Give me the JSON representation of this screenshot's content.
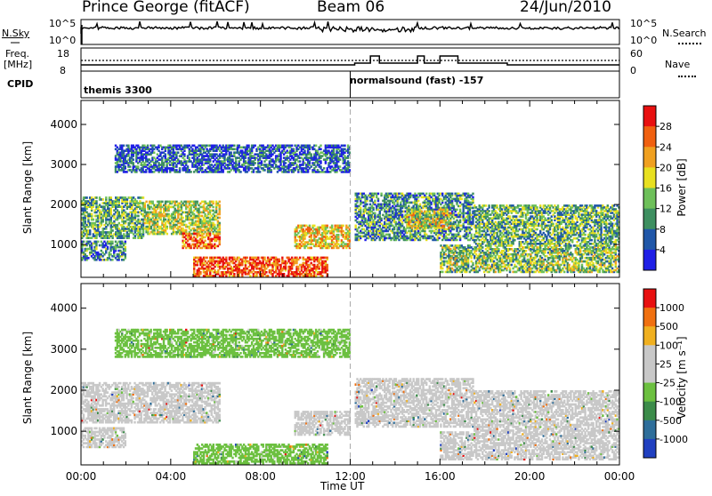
{
  "header": {
    "station": "Prince George (fitACF)",
    "beam": "Beam 06",
    "date": "24/Jun/2010"
  },
  "top_panels": {
    "nsky_label": "N.Sky",
    "nsky_ticks": [
      "10^5",
      "10^0"
    ],
    "nsearch_label": "N.Search",
    "nsearch_ticks": [
      "10^5",
      "10^0"
    ],
    "freq_label": "Freq.",
    "freq_unit": "[MHz]",
    "freq_ticks": [
      "18",
      "8"
    ],
    "nave_label": "Nave",
    "nave_ticks": [
      "60",
      "0"
    ],
    "cpid_label": "CPID",
    "cpid_segments": [
      {
        "label": "themis 3300"
      },
      {
        "label": "normalsound (fast) -157"
      }
    ]
  },
  "chart_data": [
    {
      "type": "heatmap",
      "panel": "power",
      "title": "",
      "xlabel": "",
      "ylabel": "Slant Range [km]",
      "x_tick_labels": [],
      "y_ticks": [
        1000,
        2000,
        3000,
        4000
      ],
      "y_tick_labels": [
        "1000",
        "2000",
        "3000",
        "4000"
      ],
      "xlim": [
        0,
        24
      ],
      "ylim": [
        180,
        4600
      ],
      "colorbar": {
        "label": "Power [dB]",
        "ticks": [
          "4",
          "8",
          "12",
          "16",
          "20",
          "24",
          "28"
        ],
        "colors": [
          "#1f1fe6",
          "#2057a8",
          "#3e8f60",
          "#6ec05a",
          "#e8e020",
          "#f0a020",
          "#f06010",
          "#e81010"
        ],
        "range": [
          0,
          32
        ]
      },
      "regions": [
        {
          "x": [
            0.0,
            2.8
          ],
          "y": [
            1150,
            2200
          ],
          "value": 12
        },
        {
          "x": [
            2.8,
            6.2
          ],
          "y": [
            1250,
            2100
          ],
          "value": 16
        },
        {
          "x": [
            4.5,
            6.2
          ],
          "y": [
            900,
            1300
          ],
          "value": 26
        },
        {
          "x": [
            0.0,
            2.0
          ],
          "y": [
            600,
            1100
          ],
          "value": 9
        },
        {
          "x": [
            5.0,
            11.0
          ],
          "y": [
            200,
            700
          ],
          "value": 27
        },
        {
          "x": [
            9.5,
            12.0
          ],
          "y": [
            900,
            1500
          ],
          "value": 20
        },
        {
          "x": [
            12.2,
            17.5
          ],
          "y": [
            1100,
            2300
          ],
          "value": 10
        },
        {
          "x": [
            14.5,
            16.5
          ],
          "y": [
            1400,
            1900
          ],
          "value": 18
        },
        {
          "x": [
            17.5,
            24.0
          ],
          "y": [
            1000,
            2000
          ],
          "value": 12
        },
        {
          "x": [
            16.0,
            24.0
          ],
          "y": [
            300,
            1000
          ],
          "value": 14
        },
        {
          "x": [
            1.5,
            12.0
          ],
          "y": [
            2800,
            3500
          ],
          "value": 6
        }
      ]
    },
    {
      "type": "heatmap",
      "panel": "velocity",
      "title": "",
      "xlabel": "Time UT",
      "ylabel": "Slant Range [km]",
      "x_ticks": [
        0,
        4,
        8,
        12,
        16,
        20,
        24
      ],
      "x_tick_labels": [
        "00:00",
        "04:00",
        "08:00",
        "12:00",
        "16:00",
        "20:00",
        "00:00"
      ],
      "y_ticks": [
        1000,
        2000,
        3000,
        4000
      ],
      "y_tick_labels": [
        "1000",
        "2000",
        "3000",
        "4000"
      ],
      "xlim": [
        0,
        24
      ],
      "ylim": [
        180,
        4600
      ],
      "colorbar": {
        "label": "Velocity [m s⁻¹]",
        "ticks": [
          "1000",
          "500",
          "100",
          "25",
          "-25",
          "-100",
          "-500",
          "-1000"
        ],
        "colors": [
          "#2040c0",
          "#2e6e9a",
          "#3c8c4a",
          "#6cc040",
          "#c8c8c8",
          "#c8c8c8",
          "#f0b020",
          "#f07010",
          "#e81010"
        ],
        "range": [
          -1200,
          1200
        ]
      },
      "regions": [
        {
          "x": [
            0.0,
            6.2
          ],
          "y": [
            1200,
            2200
          ],
          "value": 0
        },
        {
          "x": [
            0.0,
            2.0
          ],
          "y": [
            600,
            1100
          ],
          "value": 0
        },
        {
          "x": [
            5.0,
            11.0
          ],
          "y": [
            200,
            700
          ],
          "value": -300
        },
        {
          "x": [
            9.5,
            12.0
          ],
          "y": [
            900,
            1500
          ],
          "value": 0
        },
        {
          "x": [
            12.2,
            17.5
          ],
          "y": [
            1100,
            2300
          ],
          "value": 60
        },
        {
          "x": [
            17.5,
            24.0
          ],
          "y": [
            1000,
            2000
          ],
          "value": 0
        },
        {
          "x": [
            16.0,
            24.0
          ],
          "y": [
            300,
            1000
          ],
          "value": 0
        },
        {
          "x": [
            1.5,
            12.0
          ],
          "y": [
            2800,
            3500
          ],
          "value": -200
        }
      ]
    }
  ]
}
